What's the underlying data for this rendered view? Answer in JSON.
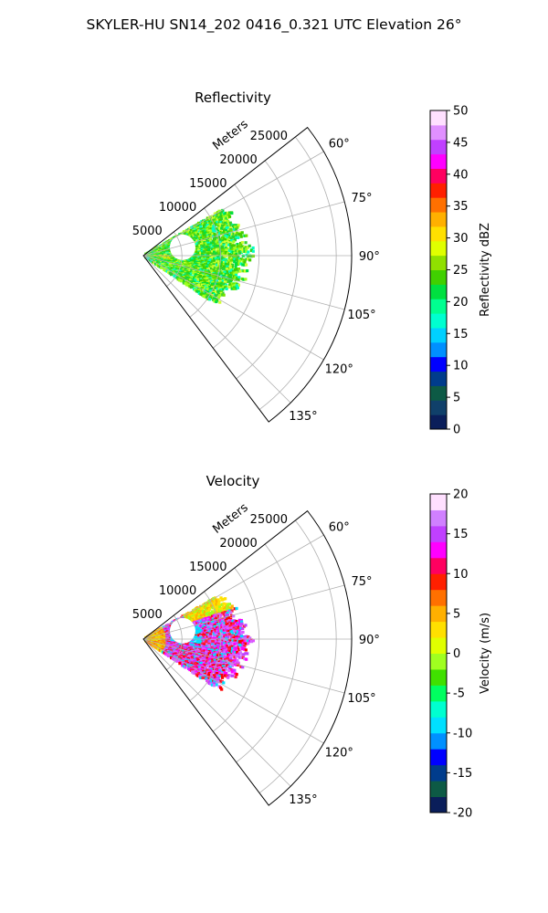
{
  "suptitle": "SKYLER-HU  SN14_202  0416_0.321 UTC Elevation 26°",
  "chart_data": [
    {
      "type": "polar-sector",
      "title": "Reflectivity",
      "radial_label": "Meters",
      "radial_ticks": [
        5000,
        10000,
        15000,
        20000,
        25000
      ],
      "radial_lim": [
        0,
        27000
      ],
      "azimuth_range_deg": [
        52,
        143
      ],
      "azimuth_ticks": [
        "60°",
        "75°",
        "90°",
        "105°",
        "120°",
        "135°"
      ],
      "azimuth_tick_values": [
        60,
        75,
        90,
        105,
        120,
        135
      ],
      "colorbar": {
        "label": "Reflectivity dBZ",
        "range": [
          0,
          50
        ],
        "ticks": [
          0,
          5,
          10,
          15,
          20,
          25,
          30,
          35,
          40,
          45,
          50
        ],
        "colormap": [
          "#0a1e5a",
          "#10406a",
          "#0d5a45",
          "#003c8c",
          "#0000ff",
          "#0090ff",
          "#00d0ff",
          "#00ffd0",
          "#00ff90",
          "#00e040",
          "#40d000",
          "#90e000",
          "#e0ff00",
          "#ffe000",
          "#ffb000",
          "#ff7000",
          "#ff2000",
          "#ff0060",
          "#ff00ff",
          "#c040ff",
          "#e090ff",
          "#ffe0ff"
        ]
      },
      "field_summary": "Echoes mostly 15–25 dBZ (green/yellow) extending to about 12000 m between azimuths 70° and 110°"
    },
    {
      "type": "polar-sector",
      "title": "Velocity",
      "radial_label": "Meters",
      "radial_ticks": [
        5000,
        10000,
        15000,
        20000,
        25000
      ],
      "radial_lim": [
        0,
        27000
      ],
      "azimuth_range_deg": [
        52,
        143
      ],
      "azimuth_ticks": [
        "60°",
        "75°",
        "90°",
        "105°",
        "120°",
        "135°"
      ],
      "azimuth_tick_values": [
        60,
        75,
        90,
        105,
        120,
        135
      ],
      "colorbar": {
        "label": "Velocity (m/s)",
        "range": [
          -20,
          20
        ],
        "ticks": [
          -20,
          -15,
          -10,
          -5,
          0,
          5,
          10,
          15,
          20
        ],
        "colormap": [
          "#0a1e5a",
          "#0d5a45",
          "#003c8c",
          "#0000ff",
          "#0090ff",
          "#00e0ff",
          "#00ffd0",
          "#00ff60",
          "#40e000",
          "#a0ff20",
          "#e0ff00",
          "#ffe000",
          "#ffb000",
          "#ff7000",
          "#ff2000",
          "#ff0060",
          "#ff00ff",
          "#c040ff",
          "#d080ff",
          "#ffe0ff"
        ]
      },
      "field_summary": "Mostly 10–15 m/s (magenta/red) with a -10 m/s (cyan) pocket near 80°–95°"
    }
  ]
}
